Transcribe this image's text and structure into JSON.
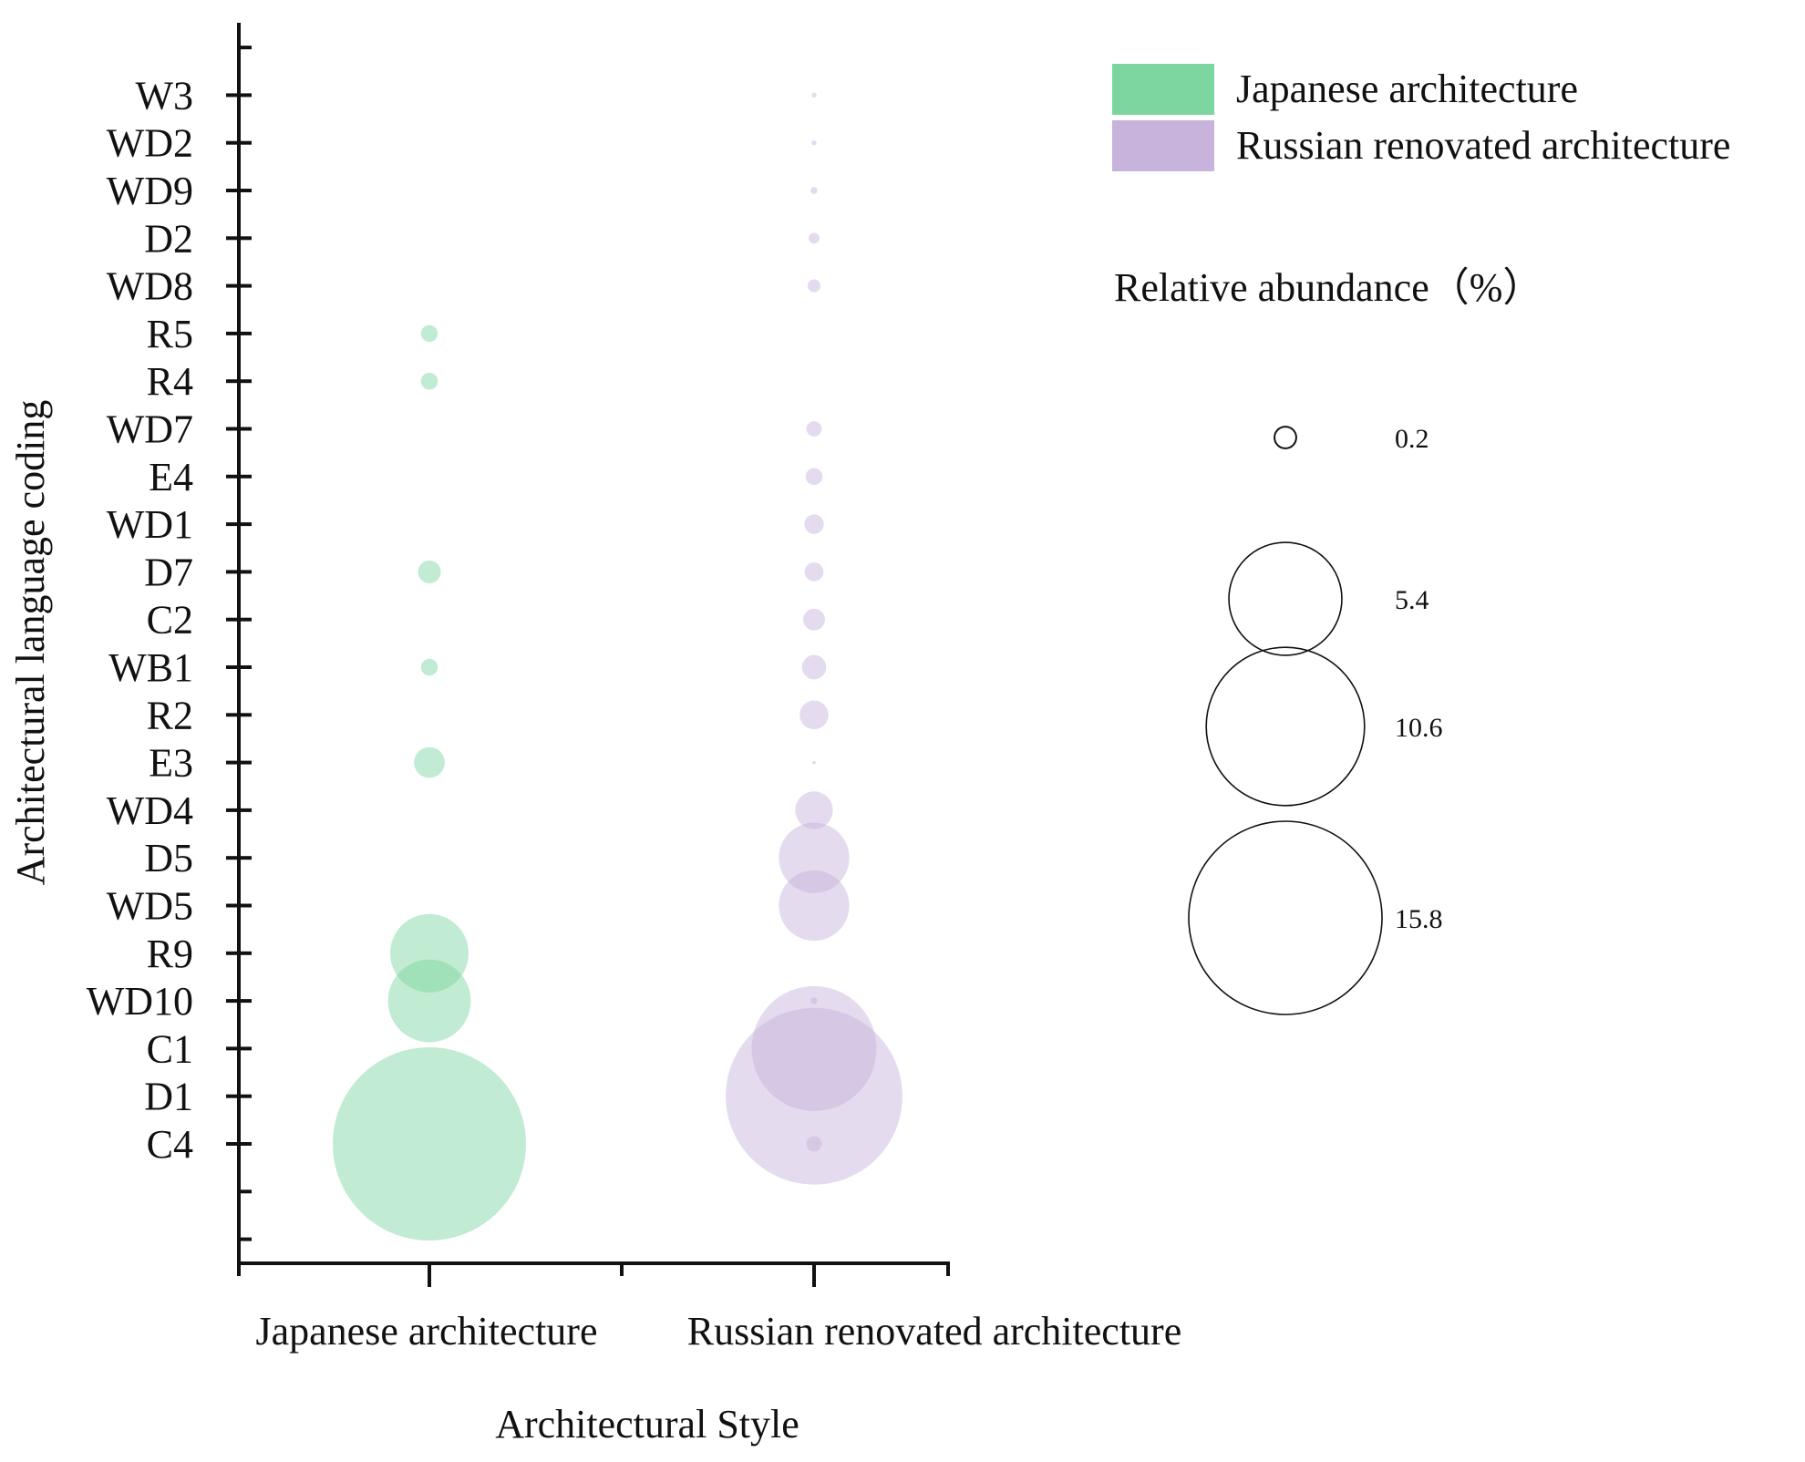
{
  "chart_data": {
    "type": "scatter",
    "subtype": "bubble",
    "xlabel": "Architectural Style",
    "ylabel": "Architectural language coding",
    "x_categories": [
      "Japanese architecture",
      "Russian renovated architecture"
    ],
    "y_categories": [
      "C4",
      "D1",
      "C1",
      "WD10",
      "R9",
      "WD5",
      "D5",
      "WD4",
      "E3",
      "R2",
      "WB1",
      "C2",
      "D7",
      "WD1",
      "E4",
      "WD7",
      "R4",
      "R5",
      "WD8",
      "D2",
      "WD9",
      "WD2",
      "W3"
    ],
    "size_unit": "Relative abundance (%)",
    "series": [
      {
        "name": "Japanese architecture",
        "color": "#7dd6a0",
        "points": [
          {
            "y": "C4",
            "value": 15.8
          },
          {
            "y": "WD10",
            "value": 2.9
          },
          {
            "y": "R9",
            "value": 2.6
          },
          {
            "y": "E3",
            "value": 0.4
          },
          {
            "y": "WB1",
            "value": 0.12
          },
          {
            "y": "D7",
            "value": 0.22
          },
          {
            "y": "R4",
            "value": 0.12
          },
          {
            "y": "R5",
            "value": 0.12
          }
        ]
      },
      {
        "name": "Russian renovated architecture",
        "color": "#c7b3dc",
        "points": [
          {
            "y": "C4",
            "value": 0.1
          },
          {
            "y": "D1",
            "value": 13.2
          },
          {
            "y": "C1",
            "value": 6.6
          },
          {
            "y": "WD10",
            "value": 0.02
          },
          {
            "y": "WD5",
            "value": 2.1
          },
          {
            "y": "D5",
            "value": 2.1
          },
          {
            "y": "WD4",
            "value": 0.6
          },
          {
            "y": "E3",
            "value": 0.005
          },
          {
            "y": "R2",
            "value": 0.35
          },
          {
            "y": "WB1",
            "value": 0.25
          },
          {
            "y": "C2",
            "value": 0.2
          },
          {
            "y": "D7",
            "value": 0.15
          },
          {
            "y": "WD1",
            "value": 0.16
          },
          {
            "y": "E4",
            "value": 0.12
          },
          {
            "y": "WD7",
            "value": 0.1
          },
          {
            "y": "WD8",
            "value": 0.07
          },
          {
            "y": "D2",
            "value": 0.05
          },
          {
            "y": "WD9",
            "value": 0.02
          },
          {
            "y": "WD2",
            "value": 0.01
          },
          {
            "y": "W3",
            "value": 0.01
          }
        ]
      }
    ],
    "size_legend": {
      "title": "Relative abundance（%）",
      "values": [
        0.2,
        5.4,
        10.6,
        15.8
      ],
      "labels": [
        "0.2",
        "5.4",
        "10.6",
        "15.8"
      ]
    },
    "legend": {
      "position": "top-right",
      "entries": [
        {
          "label": "Japanese architecture",
          "color": "#7dd6a0"
        },
        {
          "label": "Russian renovated architecture",
          "color": "#c7b3dc"
        }
      ]
    }
  }
}
